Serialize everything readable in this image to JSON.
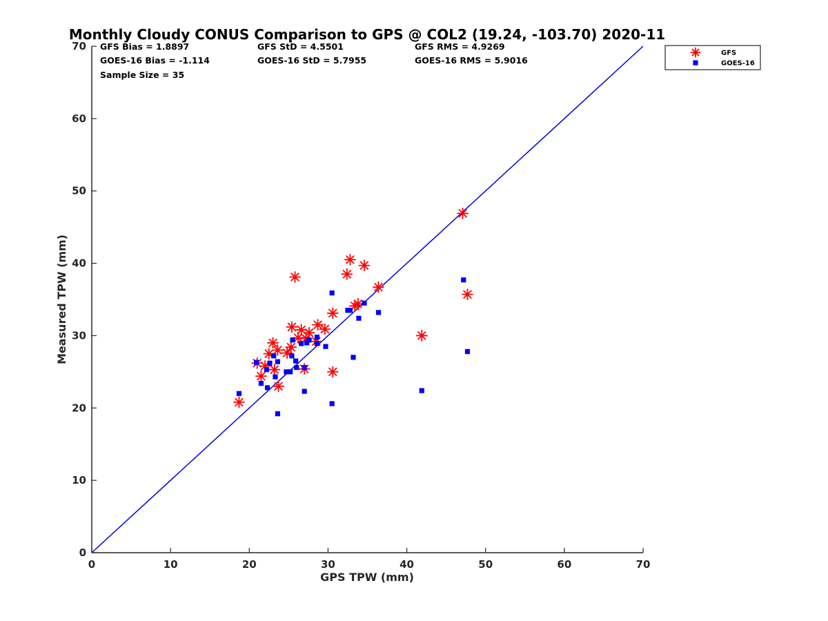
{
  "chart_data": {
    "type": "scatter",
    "title": "Monthly Cloudy CONUS Comparison to GPS @ COL2 (19.24, -103.70) 2020-11",
    "xlabel": "GPS TPW (mm)",
    "ylabel": "Measured TPW (mm)",
    "xlim": [
      0,
      70
    ],
    "ylim": [
      0,
      70
    ],
    "xticks": [
      0,
      10,
      20,
      30,
      40,
      50,
      60,
      70
    ],
    "yticks": [
      0,
      10,
      20,
      30,
      40,
      50,
      60,
      70
    ],
    "grid": false,
    "legend_position": "outside-top-right",
    "stats": [
      {
        "text": "GFS Bias = 1.8897",
        "col": 0,
        "row": 0
      },
      {
        "text": "GFS StD = 4.5501",
        "col": 1,
        "row": 0
      },
      {
        "text": "GFS RMS = 4.9269",
        "col": 2,
        "row": 0
      },
      {
        "text": "GOES-16 Bias = -1.114",
        "col": 0,
        "row": 1
      },
      {
        "text": "GOES-16 StD = 5.7955",
        "col": 1,
        "row": 1
      },
      {
        "text": "GOES-16 RMS = 5.9016",
        "col": 2,
        "row": 1
      },
      {
        "text": "Sample Size = 35",
        "col": 0,
        "row": 2
      }
    ],
    "reference_line": {
      "name": "1:1 line",
      "x": [
        0,
        70
      ],
      "y": [
        0,
        70
      ],
      "color": "#0000e0"
    },
    "series": [
      {
        "name": "GFS",
        "marker": "asterisk",
        "color": "#ff0000",
        "points": [
          [
            18.7,
            20.8
          ],
          [
            21.0,
            26.2
          ],
          [
            21.5,
            24.4
          ],
          [
            22.0,
            25.8
          ],
          [
            22.5,
            27.5
          ],
          [
            23.0,
            29.0
          ],
          [
            23.2,
            25.3
          ],
          [
            23.6,
            28.0
          ],
          [
            23.7,
            23.0
          ],
          [
            24.8,
            27.6
          ],
          [
            25.3,
            28.4
          ],
          [
            25.4,
            31.2
          ],
          [
            25.8,
            38.1
          ],
          [
            26.2,
            29.7
          ],
          [
            26.6,
            30.8
          ],
          [
            27.0,
            25.4
          ],
          [
            27.2,
            29.6
          ],
          [
            27.6,
            30.4
          ],
          [
            28.5,
            29.2
          ],
          [
            28.7,
            31.5
          ],
          [
            29.6,
            30.9
          ],
          [
            30.6,
            25.0
          ],
          [
            30.6,
            33.1
          ],
          [
            32.4,
            38.5
          ],
          [
            32.8,
            40.5
          ],
          [
            33.4,
            34.1
          ],
          [
            33.8,
            34.4
          ],
          [
            34.6,
            39.7
          ],
          [
            36.4,
            36.7
          ],
          [
            41.9,
            30.0
          ],
          [
            47.1,
            46.9
          ],
          [
            47.7,
            35.7
          ]
        ]
      },
      {
        "name": "GOES-16",
        "marker": "square",
        "color": "#0000ff",
        "points": [
          [
            18.7,
            22.0
          ],
          [
            20.9,
            26.3
          ],
          [
            21.5,
            23.4
          ],
          [
            22.2,
            25.3
          ],
          [
            22.3,
            22.8
          ],
          [
            22.6,
            26.2
          ],
          [
            23.1,
            27.2
          ],
          [
            23.3,
            24.3
          ],
          [
            23.6,
            19.2
          ],
          [
            23.6,
            26.4
          ],
          [
            24.7,
            25.0
          ],
          [
            25.2,
            25.0
          ],
          [
            25.4,
            27.2
          ],
          [
            25.5,
            29.4
          ],
          [
            25.9,
            26.5
          ],
          [
            26.0,
            25.6
          ],
          [
            26.6,
            28.9
          ],
          [
            27.0,
            22.3
          ],
          [
            27.0,
            25.6
          ],
          [
            27.3,
            29.0
          ],
          [
            27.6,
            29.4
          ],
          [
            28.6,
            29.8
          ],
          [
            28.6,
            28.9
          ],
          [
            29.7,
            28.5
          ],
          [
            30.5,
            35.9
          ],
          [
            30.5,
            20.6
          ],
          [
            32.5,
            33.5
          ],
          [
            32.8,
            33.5
          ],
          [
            33.2,
            27.0
          ],
          [
            33.9,
            32.4
          ],
          [
            34.6,
            34.5
          ],
          [
            36.4,
            33.2
          ],
          [
            41.9,
            22.4
          ],
          [
            47.2,
            37.7
          ],
          [
            47.7,
            27.8
          ]
        ]
      }
    ]
  }
}
